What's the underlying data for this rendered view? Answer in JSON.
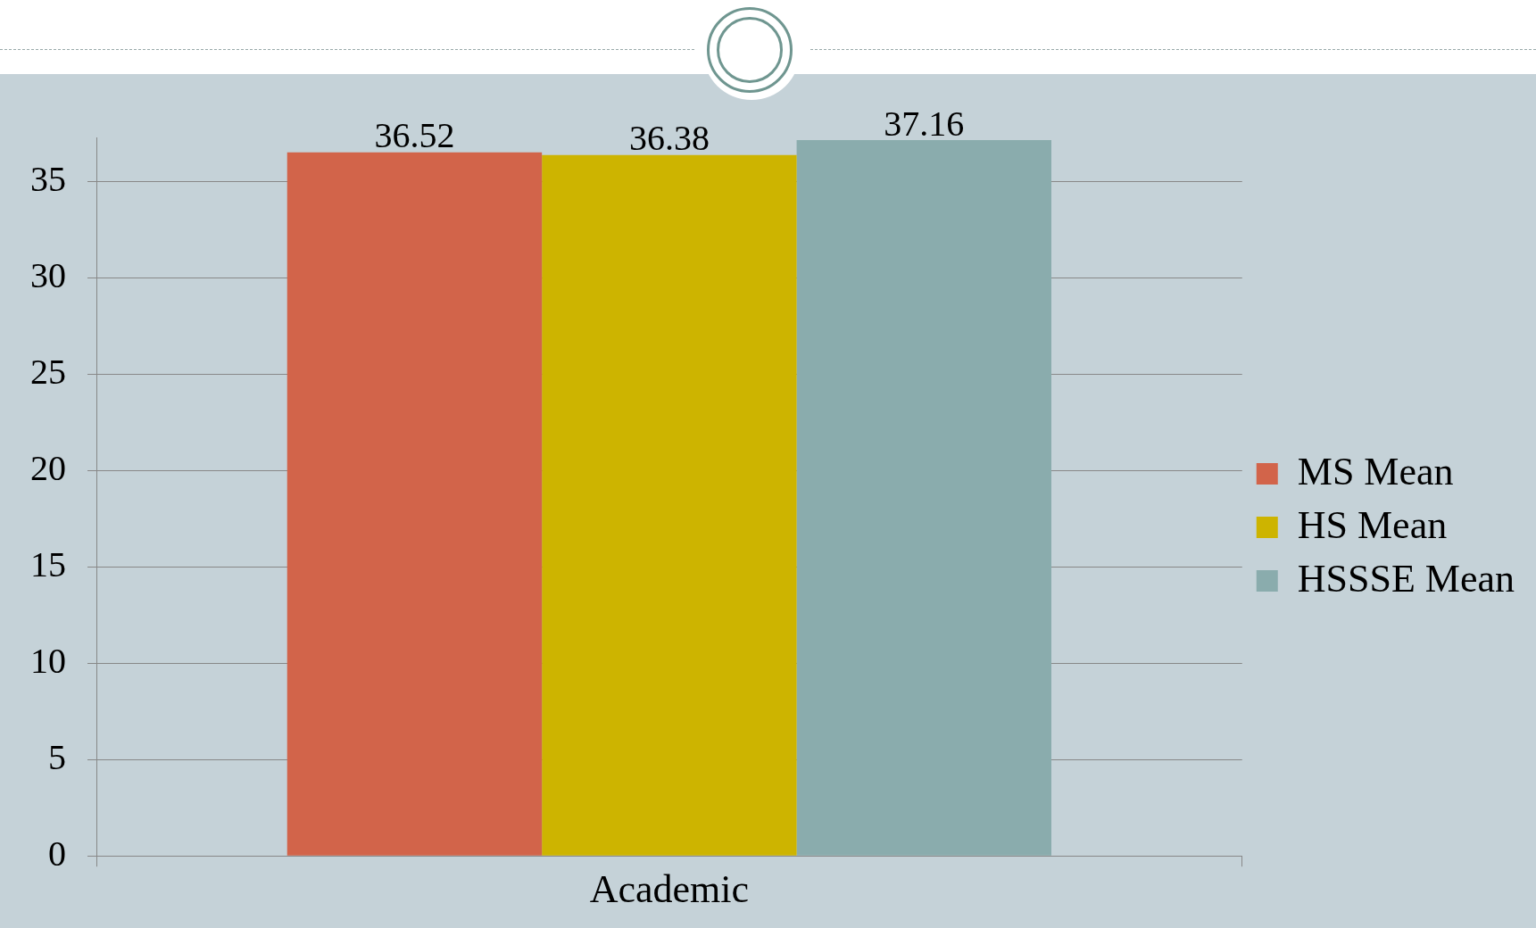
{
  "chart_data": {
    "type": "bar",
    "categories": [
      "Academic"
    ],
    "series": [
      {
        "name": "MS Mean",
        "color": "#d2644a",
        "values": [
          36.52
        ]
      },
      {
        "name": "HS Mean",
        "color": "#cdb400",
        "values": [
          36.38
        ]
      },
      {
        "name": "HSSSE Mean",
        "color": "#8aacad",
        "values": [
          37.16
        ]
      }
    ],
    "ylim": [
      0,
      37.3
    ],
    "yticks": [
      0,
      5,
      10,
      15,
      20,
      25,
      30,
      35
    ],
    "grid": "y",
    "legend": "right",
    "data_labels": true
  }
}
